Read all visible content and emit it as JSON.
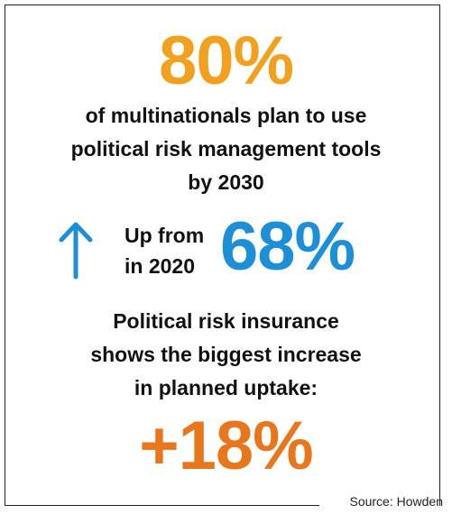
{
  "headline_stat": "80%",
  "description_lines": [
    "of multinationals plan to use",
    "political risk management tools",
    "by 2030"
  ],
  "comparison": {
    "label_line1": "Up from",
    "label_line2": "in 2020",
    "value": "68%",
    "icon": "arrow-up-icon"
  },
  "insurance_lines": [
    "Political risk insurance",
    "shows the biggest increase",
    "in planned uptake:"
  ],
  "increase_stat": "+18%",
  "source": "Source: Howden",
  "colors": {
    "headline": "#f2a11f",
    "comparison": "#1c8fd6",
    "increase": "#e8761c"
  }
}
